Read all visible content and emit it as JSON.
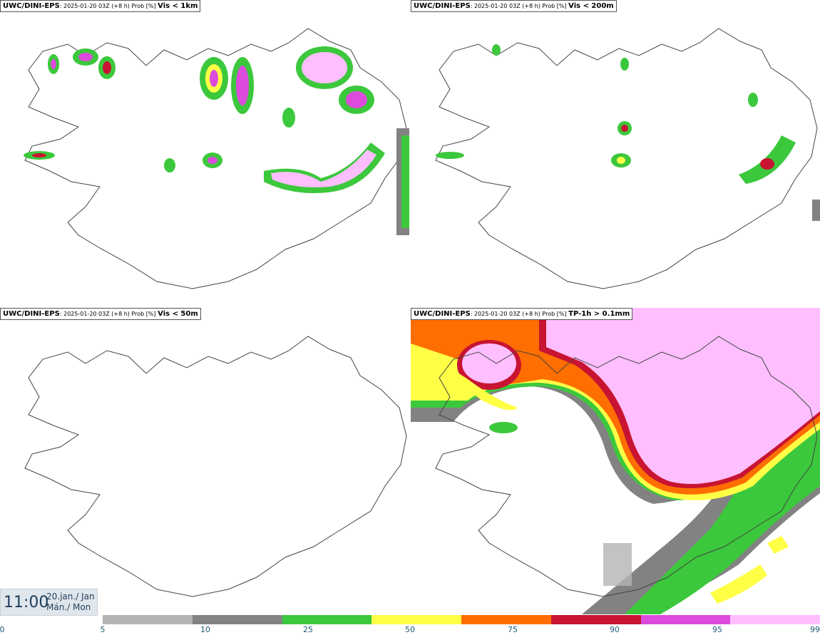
{
  "panels": [
    {
      "model": "UWC/DINI-EPS",
      "run": ": 2025-01-20 03Z (+8 h) Prob [%]",
      "variable": "Vis < 1km"
    },
    {
      "model": "UWC/DINI-EPS",
      "run": ": 2025-01-20 03Z (+8 h) Prob [%]",
      "variable": "Vis < 200m"
    },
    {
      "model": "UWC/DINI-EPS",
      "run": ": 2025-01-20 03Z (+8 h) Prob [%]",
      "variable": "Vis < 50m"
    },
    {
      "model": "UWC/DINI-EPS",
      "run": ": 2025-01-20 03Z (+8 h) Prob [%]",
      "variable": "TP-1h > 0.1mm"
    }
  ],
  "valid_time": {
    "time": "11:00",
    "date_line": "20.jan./ Jan",
    "day_line": "Mán./ Mon"
  },
  "legend": {
    "ticks": [
      "0",
      "5",
      "10",
      "25",
      "50",
      "75",
      "90",
      "95",
      "99"
    ],
    "colors": [
      "#b4b4b4",
      "#828282",
      "#3cc83c",
      "#ffff46",
      "#ff6e00",
      "#c81432",
      "#dc4bdc",
      "#ffbeff"
    ]
  }
}
